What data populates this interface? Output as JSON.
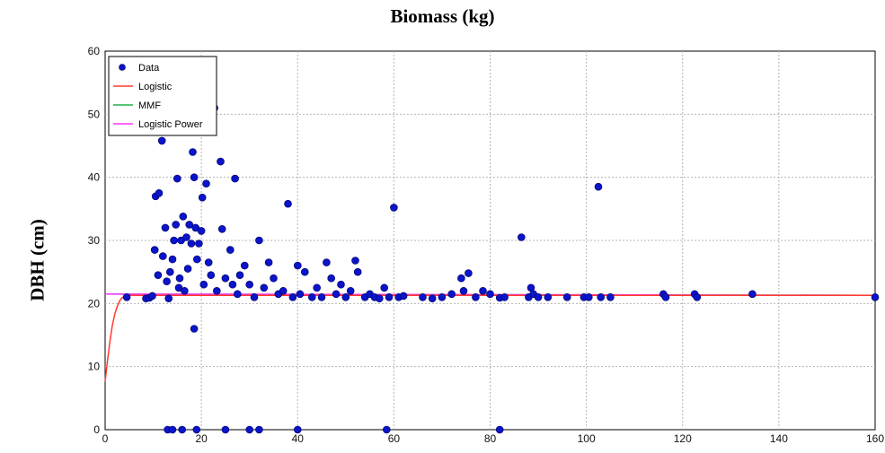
{
  "chart_data": {
    "type": "scatter",
    "title": "Biomass (kg)",
    "xlabel": "",
    "ylabel": "DBH (cm)",
    "xlim": [
      0,
      160
    ],
    "ylim": [
      0,
      60
    ],
    "x_ticks": [
      "0",
      "20",
      "40",
      "60",
      "80",
      "100",
      "120",
      "140",
      "160"
    ],
    "y_ticks": [
      "0",
      "10",
      "20",
      "30",
      "40",
      "50",
      "60"
    ],
    "grid": true,
    "legend_position": "top-left",
    "legend": [
      {
        "label": "Data",
        "kind": "marker",
        "color": "#0a14c8"
      },
      {
        "label": "Logistic",
        "kind": "line",
        "color": "#ff3b2f"
      },
      {
        "label": "MMF",
        "kind": "line",
        "color": "#22b14c"
      },
      {
        "label": "Logistic Power",
        "kind": "line",
        "color": "#ff33ff"
      }
    ],
    "series": [
      {
        "name": "Data",
        "marker_color": "#0a14c8",
        "points": [
          [
            4.5,
            21.0
          ],
          [
            8.5,
            20.8
          ],
          [
            9.2,
            20.9
          ],
          [
            9.8,
            21.2
          ],
          [
            10.3,
            28.5
          ],
          [
            10.5,
            37.0
          ],
          [
            11.0,
            24.5
          ],
          [
            11.2,
            37.5
          ],
          [
            11.8,
            45.8
          ],
          [
            12.0,
            27.5
          ],
          [
            12.5,
            32.0
          ],
          [
            12.8,
            23.5
          ],
          [
            13.2,
            20.8
          ],
          [
            13.5,
            25.0
          ],
          [
            14.0,
            27.0
          ],
          [
            14.3,
            30.0
          ],
          [
            14.7,
            32.5
          ],
          [
            15.0,
            39.8
          ],
          [
            15.3,
            22.5
          ],
          [
            15.5,
            24.0
          ],
          [
            15.8,
            30.0
          ],
          [
            16.2,
            33.8
          ],
          [
            16.5,
            22.0
          ],
          [
            16.9,
            30.5
          ],
          [
            17.2,
            25.5
          ],
          [
            17.5,
            32.5
          ],
          [
            17.9,
            29.5
          ],
          [
            18.2,
            44.0
          ],
          [
            18.5,
            40.0
          ],
          [
            18.8,
            32.0
          ],
          [
            19.1,
            27.0
          ],
          [
            19.5,
            29.5
          ],
          [
            20.0,
            31.5
          ],
          [
            20.2,
            36.8
          ],
          [
            20.5,
            23.0
          ],
          [
            21.0,
            39.0
          ],
          [
            21.5,
            26.5
          ],
          [
            22.0,
            24.5
          ],
          [
            22.7,
            51.0
          ],
          [
            23.2,
            22.0
          ],
          [
            24.0,
            42.5
          ],
          [
            24.3,
            31.8
          ],
          [
            25.0,
            24.0
          ],
          [
            26.0,
            28.5
          ],
          [
            26.5,
            23.0
          ],
          [
            27.0,
            39.8
          ],
          [
            27.5,
            21.5
          ],
          [
            28.0,
            24.5
          ],
          [
            29.0,
            26.0
          ],
          [
            30.0,
            23.0
          ],
          [
            31.0,
            21.0
          ],
          [
            32.0,
            30.0
          ],
          [
            33.0,
            22.5
          ],
          [
            34.0,
            26.5
          ],
          [
            35.0,
            24.0
          ],
          [
            36.0,
            21.5
          ],
          [
            37.0,
            22.0
          ],
          [
            38.0,
            35.8
          ],
          [
            39.0,
            21.0
          ],
          [
            40.0,
            26.0
          ],
          [
            40.5,
            21.5
          ],
          [
            41.5,
            25.0
          ],
          [
            43.0,
            21.0
          ],
          [
            44.0,
            22.5
          ],
          [
            45.0,
            21.0
          ],
          [
            46.0,
            26.5
          ],
          [
            47.0,
            24.0
          ],
          [
            48.0,
            21.5
          ],
          [
            49.0,
            23.0
          ],
          [
            50.0,
            21.0
          ],
          [
            51.0,
            22.0
          ],
          [
            52.0,
            26.8
          ],
          [
            52.5,
            25.0
          ],
          [
            54.0,
            21.0
          ],
          [
            55.0,
            21.5
          ],
          [
            56.0,
            21.0
          ],
          [
            57.0,
            20.8
          ],
          [
            58.0,
            22.5
          ],
          [
            59.0,
            21.0
          ],
          [
            60.0,
            35.2
          ],
          [
            61.0,
            21.0
          ],
          [
            62.0,
            21.2
          ],
          [
            66.0,
            21.0
          ],
          [
            68.0,
            20.8
          ],
          [
            70.0,
            21.0
          ],
          [
            72.0,
            21.5
          ],
          [
            74.0,
            24.0
          ],
          [
            74.5,
            22.0
          ],
          [
            75.5,
            24.8
          ],
          [
            77.0,
            21.0
          ],
          [
            78.5,
            22.0
          ],
          [
            80.0,
            21.5
          ],
          [
            82.0,
            20.9
          ],
          [
            83.0,
            21.0
          ],
          [
            86.5,
            30.5
          ],
          [
            88.0,
            21.0
          ],
          [
            88.5,
            22.5
          ],
          [
            89.0,
            21.5
          ],
          [
            90.0,
            21.0
          ],
          [
            92.0,
            21.0
          ],
          [
            96.0,
            21.0
          ],
          [
            99.5,
            21.0
          ],
          [
            100.5,
            21.0
          ],
          [
            102.5,
            38.5
          ],
          [
            103.0,
            21.0
          ],
          [
            105.0,
            21.0
          ],
          [
            116.0,
            21.5
          ],
          [
            116.5,
            21.0
          ],
          [
            122.5,
            21.5
          ],
          [
            123.0,
            21.0
          ],
          [
            134.5,
            21.5
          ],
          [
            160.0,
            21.0
          ],
          [
            18.5,
            16.0
          ],
          [
            13.0,
            0.0
          ],
          [
            14.0,
            0.0
          ],
          [
            16.0,
            0.0
          ],
          [
            19.0,
            0.0
          ],
          [
            25.0,
            0.0
          ],
          [
            30.0,
            0.0
          ],
          [
            32.0,
            0.0
          ],
          [
            40.0,
            0.0
          ],
          [
            58.5,
            0.0
          ],
          [
            82.0,
            0.0
          ]
        ]
      },
      {
        "name": "Logistic",
        "line_color": "#ff3b2f",
        "points": [
          [
            0,
            7.6
          ],
          [
            0.5,
            11.0
          ],
          [
            1.0,
            14.0
          ],
          [
            1.5,
            16.5
          ],
          [
            2.0,
            18.3
          ],
          [
            2.5,
            19.5
          ],
          [
            3.0,
            20.4
          ],
          [
            3.5,
            20.9
          ],
          [
            4.0,
            21.1
          ],
          [
            5.0,
            21.3
          ],
          [
            160,
            21.3
          ]
        ]
      },
      {
        "name": "MMF",
        "line_color": "#22b14c",
        "points": [
          [
            0,
            21.5
          ],
          [
            160,
            21.3
          ]
        ]
      },
      {
        "name": "Logistic Power",
        "line_color": "#ff33ff",
        "points": [
          [
            0,
            21.5
          ],
          [
            160,
            21.3
          ]
        ]
      }
    ]
  }
}
